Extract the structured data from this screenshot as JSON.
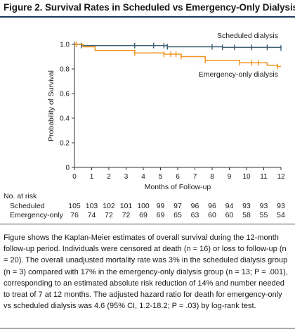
{
  "figure": {
    "title": "Figure 2. Survival Rates in Scheduled vs Emergency-Only Dialysis"
  },
  "chart_data": {
    "type": "line",
    "subtype": "kaplan-meier step",
    "xlabel": "Months of Follow-up",
    "ylabel": "Probability of Survival",
    "xlim": [
      0,
      12
    ],
    "ylim": [
      0,
      1.0
    ],
    "x_ticks": [
      "0",
      "1",
      "2",
      "3",
      "4",
      "5",
      "6",
      "7",
      "8",
      "9",
      "10",
      "11",
      "12"
    ],
    "y_ticks": [
      "0",
      "0.2",
      "0.4",
      "0.6",
      "0.8",
      "1.0"
    ],
    "grid": false,
    "series": [
      {
        "name": "Scheduled dialysis",
        "color": "#3f5f73",
        "steps": [
          [
            0,
            1.0
          ],
          [
            0.4,
            0.99
          ],
          [
            5.4,
            0.98
          ],
          [
            8.6,
            0.975
          ],
          [
            12,
            0.97
          ]
        ],
        "censor_x": [
          0.4,
          3.5,
          4.6,
          5.2,
          5.4,
          8.0,
          8.6,
          9.3,
          10.3,
          11.2,
          12.0
        ]
      },
      {
        "name": "Emergency-only dialysis",
        "color": "#f0941e",
        "steps": [
          [
            0,
            1.0
          ],
          [
            0.5,
            0.98
          ],
          [
            1.2,
            0.95
          ],
          [
            3.5,
            0.93
          ],
          [
            5.2,
            0.92
          ],
          [
            6.2,
            0.9
          ],
          [
            7.6,
            0.87
          ],
          [
            9.6,
            0.85
          ],
          [
            11.2,
            0.83
          ],
          [
            11.8,
            0.82
          ],
          [
            12,
            0.82
          ]
        ],
        "censor_x": [
          0.1,
          3.5,
          5.2,
          5.6,
          5.9,
          6.2,
          7.6,
          9.6,
          10.3,
          10.7,
          11.8
        ]
      }
    ],
    "risk_table": {
      "heading": "No. at risk",
      "rows": [
        {
          "label": "Scheduled",
          "values": [
            "105",
            "103",
            "102",
            "101",
            "100",
            "99",
            "97",
            "96",
            "96",
            "94",
            "93",
            "93",
            "93"
          ]
        },
        {
          "label": "Emergency-only",
          "values": [
            "76",
            "74",
            "72",
            "72",
            "69",
            "69",
            "65",
            "63",
            "60",
            "60",
            "58",
            "55",
            "54"
          ]
        }
      ]
    }
  },
  "caption": {
    "paragraphs": [
      "Figure shows the Kaplan-Meier estimates of overall survival during the 12-month follow-up period. Individuals were censored at death (n = 16) or loss to follow-up (n = 20). The overall unadjusted mortality rate was 3% in the scheduled dialysis group (n = 3) compared with 17% in the emergency-only dialysis group (n = 13; P = .001), corresponding to an estimated absolute risk reduction of 14% and number needed to treat of 7 at 12 months. The adjusted hazard ratio for death for emergency-only vs scheduled dialysis was 4.6 (95% CI, 1.2-18.2; P = .03) by log-rank test."
    ]
  }
}
